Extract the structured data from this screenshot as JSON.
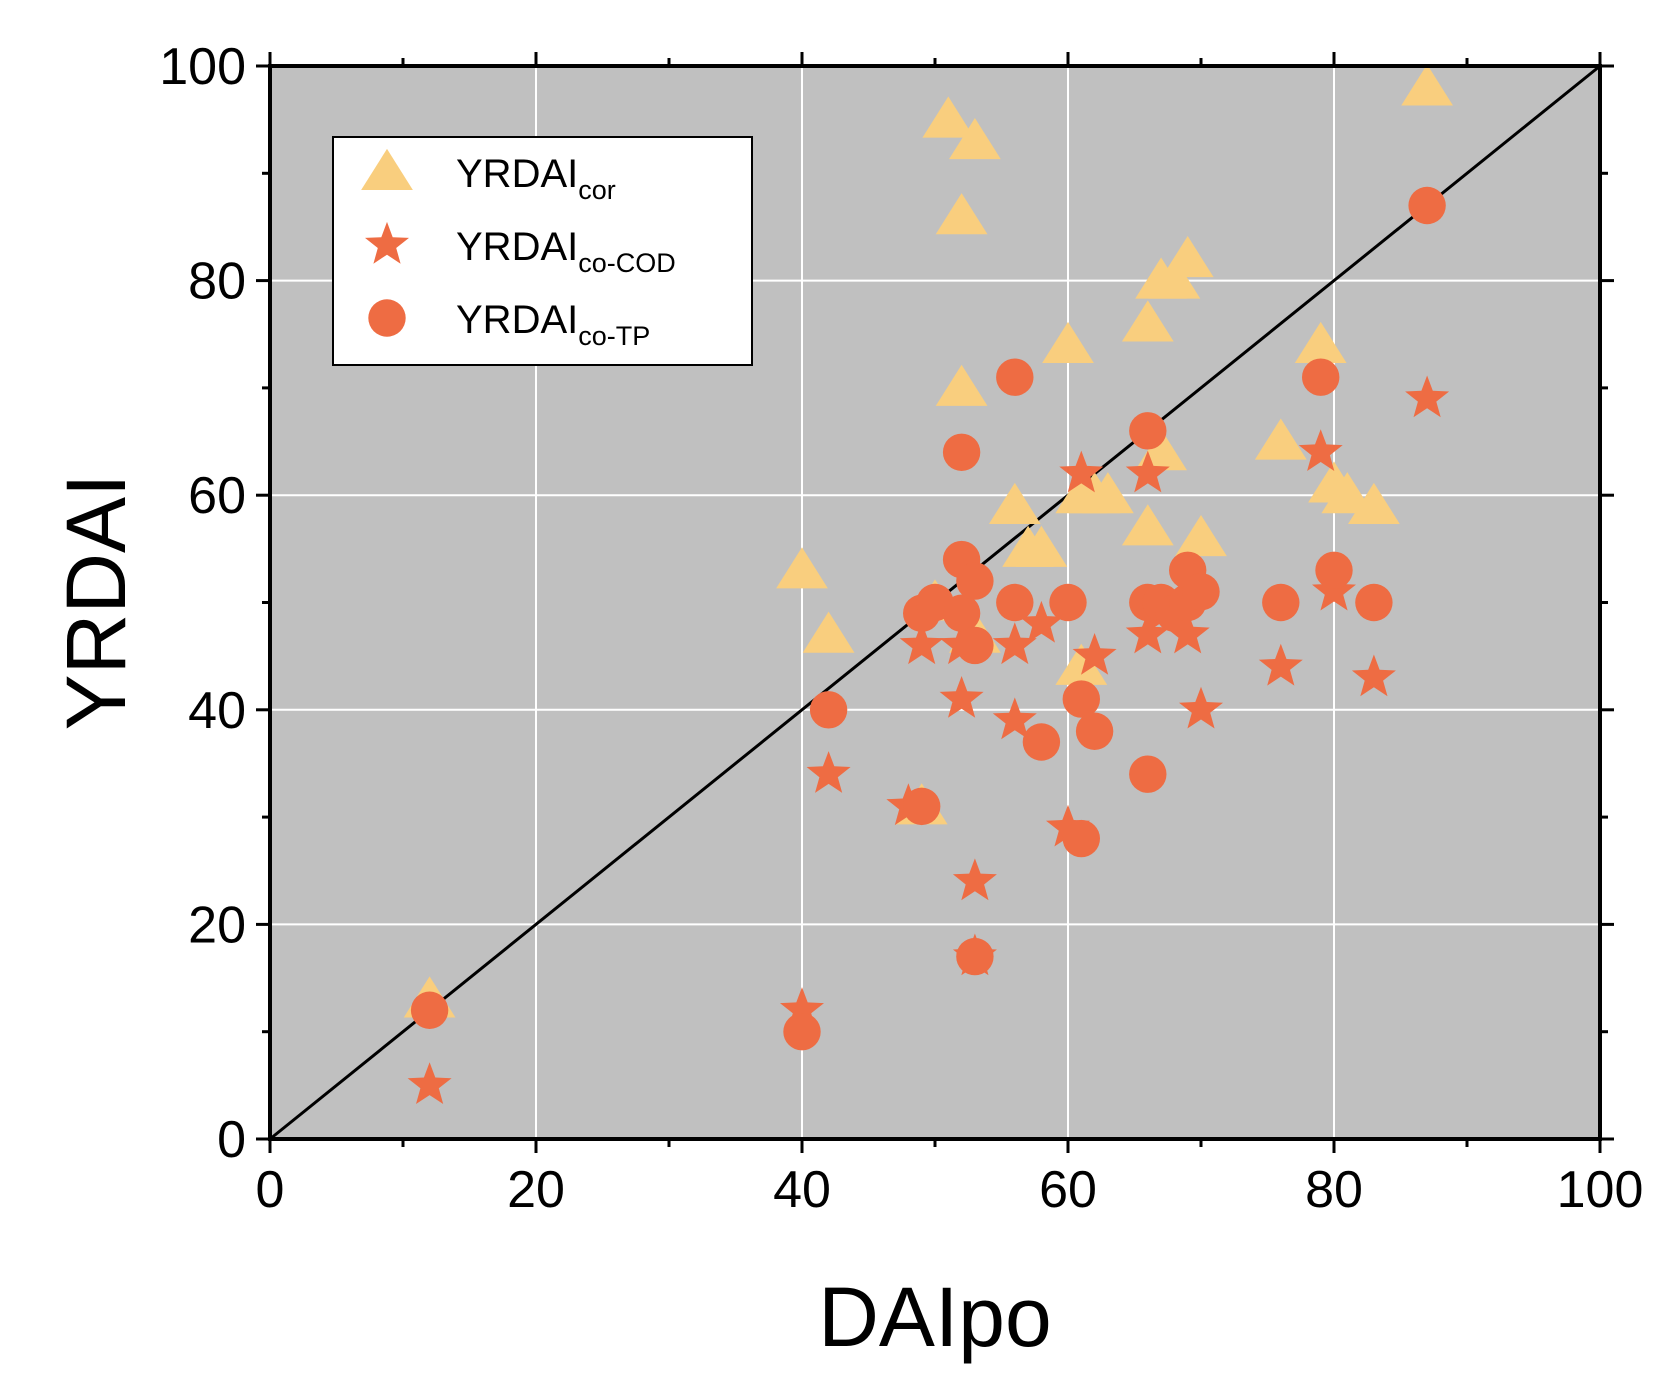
{
  "chart_data": {
    "type": "scatter",
    "title": "",
    "xlabel": "DAIpo",
    "ylabel": "YRDAI",
    "xlim": [
      0,
      100
    ],
    "ylim": [
      0,
      100
    ],
    "xticks": [
      "0",
      "20",
      "40",
      "60",
      "80",
      "100"
    ],
    "yticks": [
      "0",
      "20",
      "40",
      "60",
      "80",
      "100"
    ],
    "grid": true,
    "legend_position": "top-left",
    "reference_line": {
      "name": "1:1 line",
      "x": [
        0,
        100
      ],
      "y": [
        0,
        100
      ],
      "color": "#000000"
    },
    "series": [
      {
        "name": "YRDAI",
        "subscript": "cor",
        "marker": "triangle",
        "color": "#F9CE7E",
        "points": [
          [
            12,
            13
          ],
          [
            40,
            53
          ],
          [
            42,
            47
          ],
          [
            49,
            31
          ],
          [
            50,
            50
          ],
          [
            51,
            95
          ],
          [
            52,
            86
          ],
          [
            52,
            70
          ],
          [
            53,
            93
          ],
          [
            53,
            47
          ],
          [
            56,
            59
          ],
          [
            57,
            55
          ],
          [
            58,
            55
          ],
          [
            60,
            74
          ],
          [
            61,
            44
          ],
          [
            61,
            60
          ],
          [
            62,
            60
          ],
          [
            63,
            60
          ],
          [
            66,
            57
          ],
          [
            66,
            76
          ],
          [
            67,
            64
          ],
          [
            67,
            80
          ],
          [
            68,
            80
          ],
          [
            69,
            82
          ],
          [
            70,
            56
          ],
          [
            76,
            65
          ],
          [
            79,
            74
          ],
          [
            80,
            61
          ],
          [
            81,
            60
          ],
          [
            83,
            59
          ],
          [
            87,
            98
          ]
        ]
      },
      {
        "name": "YRDAI",
        "subscript": "co-COD",
        "marker": "star",
        "color": "#EE6C43",
        "points": [
          [
            12,
            5
          ],
          [
            40,
            12
          ],
          [
            42,
            34
          ],
          [
            48,
            31
          ],
          [
            49,
            46
          ],
          [
            52,
            46
          ],
          [
            52,
            41
          ],
          [
            53,
            24
          ],
          [
            53,
            17
          ],
          [
            56,
            39
          ],
          [
            56,
            46
          ],
          [
            58,
            48
          ],
          [
            60,
            29
          ],
          [
            61,
            62
          ],
          [
            62,
            45
          ],
          [
            66,
            62
          ],
          [
            66,
            47
          ],
          [
            67,
            49
          ],
          [
            69,
            47
          ],
          [
            70,
            40
          ],
          [
            76,
            44
          ],
          [
            79,
            64
          ],
          [
            80,
            51
          ],
          [
            83,
            43
          ],
          [
            87,
            69
          ]
        ]
      },
      {
        "name": "YRDAI",
        "subscript": "co-TP",
        "marker": "circle",
        "color": "#EE6C43",
        "points": [
          [
            12,
            12
          ],
          [
            40,
            10
          ],
          [
            42,
            40
          ],
          [
            49,
            31
          ],
          [
            49,
            49
          ],
          [
            50,
            50
          ],
          [
            52,
            64
          ],
          [
            52,
            54
          ],
          [
            52,
            49
          ],
          [
            53,
            46
          ],
          [
            53,
            17
          ],
          [
            53,
            52
          ],
          [
            56,
            50
          ],
          [
            56,
            71
          ],
          [
            58,
            37
          ],
          [
            60,
            50
          ],
          [
            61,
            41
          ],
          [
            62,
            38
          ],
          [
            61,
            28
          ],
          [
            66,
            66
          ],
          [
            66,
            34
          ],
          [
            66,
            50
          ],
          [
            67,
            50
          ],
          [
            68,
            49
          ],
          [
            69,
            50
          ],
          [
            69,
            53
          ],
          [
            70,
            51
          ],
          [
            76,
            50
          ],
          [
            79,
            71
          ],
          [
            80,
            53
          ],
          [
            83,
            50
          ],
          [
            87,
            87
          ]
        ]
      }
    ]
  }
}
